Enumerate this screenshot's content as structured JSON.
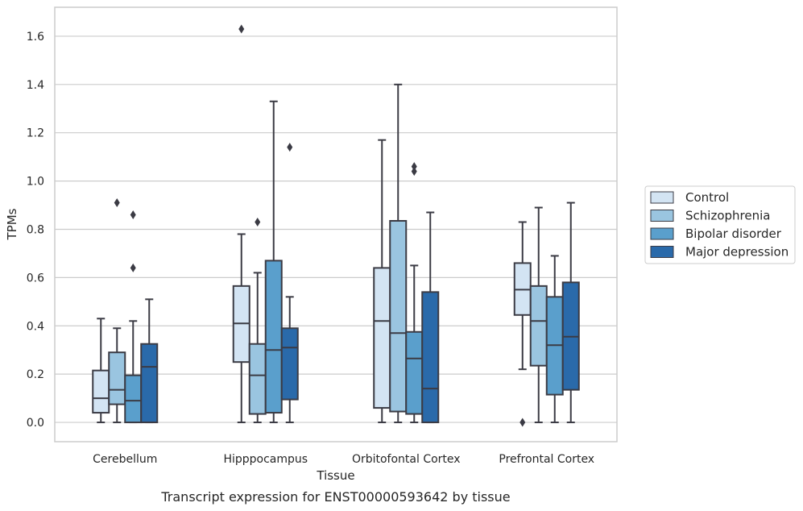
{
  "chart_data": {
    "type": "box",
    "caption": "Transcript expression for ENST00000593642 by tissue",
    "xlabel": "Tissue",
    "ylabel": "TPMs",
    "ylim": [
      -0.08,
      1.72
    ],
    "yticks": [
      0.0,
      0.2,
      0.4,
      0.6,
      0.8,
      1.0,
      1.2,
      1.4,
      1.6
    ],
    "ytick_labels": [
      "0.0",
      "0.2",
      "0.4",
      "0.6",
      "0.8",
      "1.0",
      "1.2",
      "1.4",
      "1.6"
    ],
    "grid": "horizontal",
    "legend_position": "right",
    "categories": [
      "Cerebellum",
      "Hipppocampus",
      "Orbitofontal Cortex",
      "Prefrontal Cortex"
    ],
    "series": [
      {
        "name": "Control",
        "color": "#d3e4f3",
        "boxes": [
          {
            "whislo": 0.0,
            "q1": 0.04,
            "med": 0.1,
            "q3": 0.215,
            "whishi": 0.43,
            "fliers": []
          },
          {
            "whislo": 0.0,
            "q1": 0.25,
            "med": 0.41,
            "q3": 0.565,
            "whishi": 0.78,
            "fliers": [
              1.63
            ]
          },
          {
            "whislo": 0.0,
            "q1": 0.06,
            "med": 0.42,
            "q3": 0.64,
            "whishi": 1.17,
            "fliers": []
          },
          {
            "whislo": 0.22,
            "q1": 0.445,
            "med": 0.55,
            "q3": 0.66,
            "whishi": 0.83,
            "fliers": [
              0.0
            ]
          }
        ]
      },
      {
        "name": "Schizophrenia",
        "color": "#9ac5e0",
        "boxes": [
          {
            "whislo": 0.0,
            "q1": 0.075,
            "med": 0.135,
            "q3": 0.29,
            "whishi": 0.39,
            "fliers": [
              0.91
            ]
          },
          {
            "whislo": 0.0,
            "q1": 0.035,
            "med": 0.195,
            "q3": 0.325,
            "whishi": 0.62,
            "fliers": [
              0.83
            ]
          },
          {
            "whislo": 0.0,
            "q1": 0.045,
            "med": 0.37,
            "q3": 0.835,
            "whishi": 1.4,
            "fliers": []
          },
          {
            "whislo": 0.0,
            "q1": 0.235,
            "med": 0.42,
            "q3": 0.565,
            "whishi": 0.89,
            "fliers": []
          }
        ]
      },
      {
        "name": "Bipolar disorder",
        "color": "#5a9fcc",
        "boxes": [
          {
            "whislo": 0.0,
            "q1": 0.0,
            "med": 0.09,
            "q3": 0.195,
            "whishi": 0.42,
            "fliers": [
              0.64,
              0.86
            ]
          },
          {
            "whislo": 0.0,
            "q1": 0.04,
            "med": 0.3,
            "q3": 0.67,
            "whishi": 1.33,
            "fliers": []
          },
          {
            "whislo": 0.0,
            "q1": 0.035,
            "med": 0.265,
            "q3": 0.375,
            "whishi": 0.65,
            "fliers": [
              1.04,
              1.06
            ]
          },
          {
            "whislo": 0.0,
            "q1": 0.115,
            "med": 0.32,
            "q3": 0.52,
            "whishi": 0.69,
            "fliers": []
          }
        ]
      },
      {
        "name": "Major depression",
        "color": "#2a6aaa",
        "boxes": [
          {
            "whislo": 0.0,
            "q1": 0.0,
            "med": 0.23,
            "q3": 0.325,
            "whishi": 0.51,
            "fliers": []
          },
          {
            "whislo": 0.0,
            "q1": 0.095,
            "med": 0.31,
            "q3": 0.39,
            "whishi": 0.52,
            "fliers": [
              1.14
            ]
          },
          {
            "whislo": 0.0,
            "q1": 0.0,
            "med": 0.14,
            "q3": 0.54,
            "whishi": 0.87,
            "fliers": []
          },
          {
            "whislo": 0.0,
            "q1": 0.135,
            "med": 0.355,
            "q3": 0.58,
            "whishi": 0.91,
            "fliers": []
          }
        ]
      }
    ]
  }
}
